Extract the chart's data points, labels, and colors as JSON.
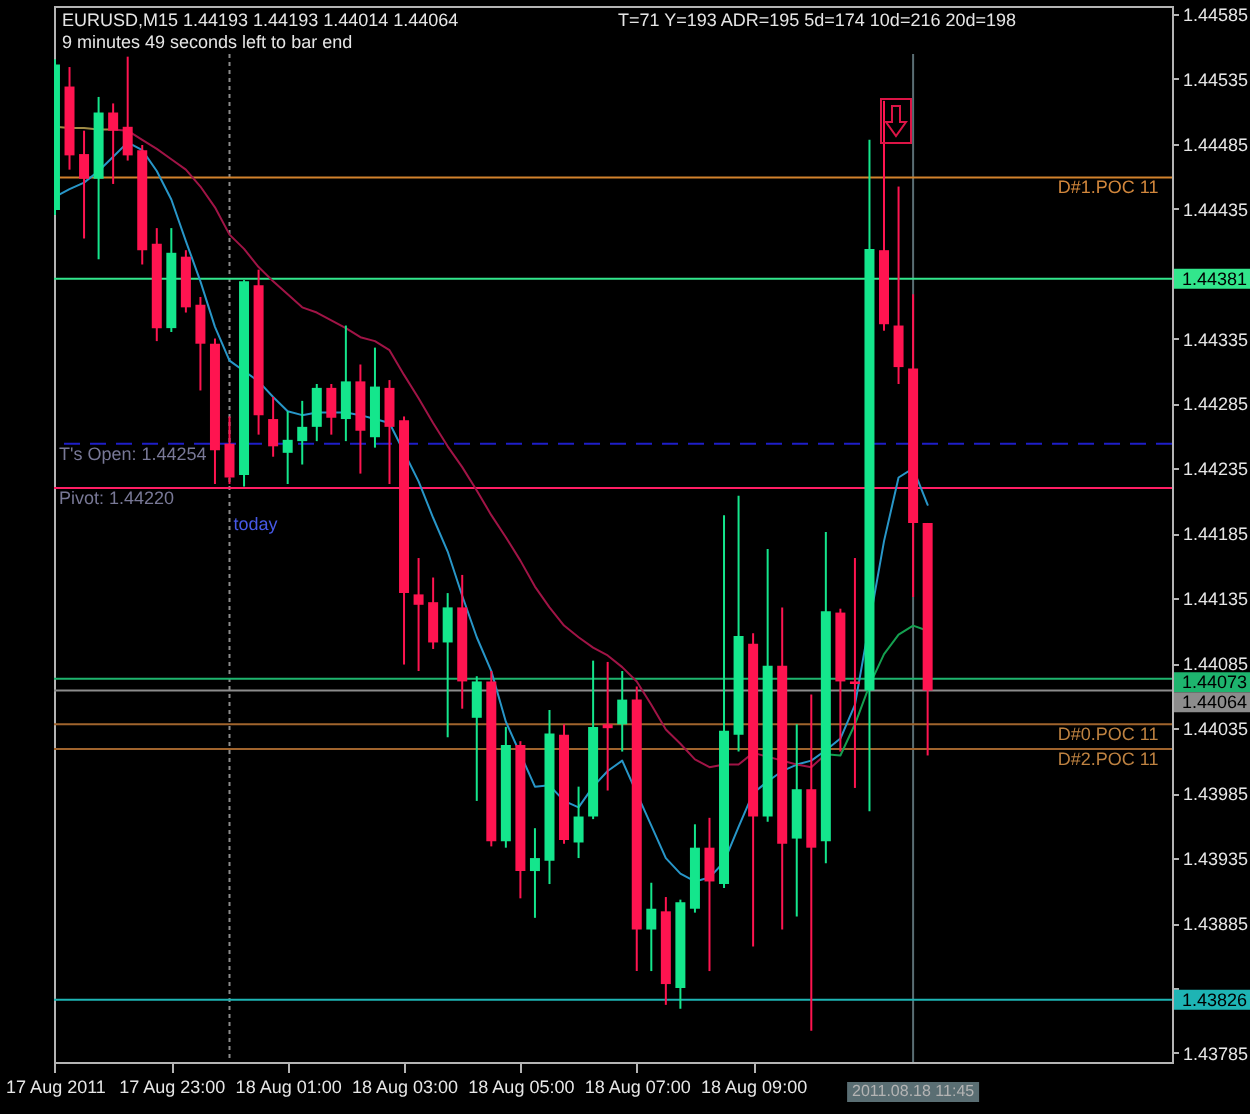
{
  "chart_data": {
    "type": "candlestick",
    "title": "EURUSD,M15  1.44193 1.44193 1.44014 1.44064",
    "subtitle": "9 minutes 49 seconds left to bar end",
    "annotations": [
      "T=71   Y=193  ADR=195  5d=174  10d=216  20d=198",
      {
        "text": "T's Open: 1.44254",
        "x": "2011-08-17T21:00",
        "y": 1.44254
      },
      {
        "text": "Pivot: 1.44220",
        "x": "2011-08-17T21:00",
        "y": 1.4422
      },
      {
        "text": "today",
        "x": "2011-08-18T00:00",
        "y": 1.442
      },
      {
        "text": "D#1.POC 11",
        "x": "2011-08-18T14:10",
        "y": 1.44459
      },
      {
        "text": "D#0.POC 11",
        "x": "2011-08-18T14:10",
        "y": 1.44038
      },
      {
        "text": "D#2.POC 11",
        "x": "2011-08-18T14:10",
        "y": 1.44019
      }
    ],
    "x": [
      "2011-08-17T21:00",
      "2011-08-17T21:15",
      "2011-08-17T21:30",
      "2011-08-17T21:45",
      "2011-08-17T22:00",
      "2011-08-17T22:15",
      "2011-08-17T22:30",
      "2011-08-17T22:45",
      "2011-08-17T23:00",
      "2011-08-17T23:15",
      "2011-08-17T23:30",
      "2011-08-17T23:45",
      "2011-08-18T00:00",
      "2011-08-18T00:15",
      "2011-08-18T00:30",
      "2011-08-18T00:45",
      "2011-08-18T01:00",
      "2011-08-18T01:15",
      "2011-08-18T01:30",
      "2011-08-18T01:45",
      "2011-08-18T02:00",
      "2011-08-18T02:15",
      "2011-08-18T02:30",
      "2011-08-18T02:45",
      "2011-08-18T03:00",
      "2011-08-18T03:15",
      "2011-08-18T03:30",
      "2011-08-18T03:45",
      "2011-08-18T04:00",
      "2011-08-18T04:15",
      "2011-08-18T04:30",
      "2011-08-18T04:45",
      "2011-08-18T05:00",
      "2011-08-18T05:15",
      "2011-08-18T05:30",
      "2011-08-18T05:45",
      "2011-08-18T06:00",
      "2011-08-18T06:15",
      "2011-08-18T06:30",
      "2011-08-18T06:45",
      "2011-08-18T07:00",
      "2011-08-18T07:15",
      "2011-08-18T07:30",
      "2011-08-18T07:45",
      "2011-08-18T08:00",
      "2011-08-18T08:15",
      "2011-08-18T08:30",
      "2011-08-18T08:45",
      "2011-08-18T09:00",
      "2011-08-18T09:15",
      "2011-08-18T09:30",
      "2011-08-18T09:45",
      "2011-08-18T10:00",
      "2011-08-18T10:15",
      "2011-08-18T10:30",
      "2011-08-18T10:45",
      "2011-08-18T11:00",
      "2011-08-18T11:15",
      "2011-08-18T11:30",
      "2011-08-18T11:45",
      "2011-08-18T12:00"
    ],
    "ohlc": [
      [
        1.44434,
        1.4455,
        1.4443,
        1.44546
      ],
      [
        1.44529,
        1.44544,
        1.44465,
        1.44476
      ],
      [
        1.44477,
        1.44495,
        1.44412,
        1.44458
      ],
      [
        1.44458,
        1.44521,
        1.44396,
        1.44509
      ],
      [
        1.44509,
        1.44516,
        1.44454,
        1.44495
      ],
      [
        1.44498,
        1.44552,
        1.44472,
        1.44476
      ],
      [
        1.4448,
        1.44484,
        1.44392,
        1.44403
      ],
      [
        1.44408,
        1.4442,
        1.44333,
        1.44343
      ],
      [
        1.44343,
        1.4442,
        1.4434,
        1.44401
      ],
      [
        1.44398,
        1.44403,
        1.44355,
        1.44359
      ],
      [
        1.44361,
        1.44367,
        1.44295,
        1.44331
      ],
      [
        1.44331,
        1.44335,
        1.44223,
        1.44249
      ],
      [
        1.44254,
        1.44275,
        1.44223,
        1.44228
      ],
      [
        1.4423,
        1.4438,
        1.44221,
        1.44379
      ],
      [
        1.44376,
        1.44388,
        1.44261,
        1.44276
      ],
      [
        1.44273,
        1.4429,
        1.44244,
        1.44252
      ],
      [
        1.44247,
        1.44279,
        1.44223,
        1.44257
      ],
      [
        1.44256,
        1.44287,
        1.44238,
        1.44267
      ],
      [
        1.44267,
        1.443,
        1.44256,
        1.44297
      ],
      [
        1.44297,
        1.443,
        1.44261,
        1.44274
      ],
      [
        1.44273,
        1.44345,
        1.44256,
        1.44302
      ],
      [
        1.44302,
        1.44315,
        1.44231,
        1.44264
      ],
      [
        1.44259,
        1.44328,
        1.44251,
        1.44298
      ],
      [
        1.44297,
        1.44303,
        1.44223,
        1.44267
      ],
      [
        1.44272,
        1.44275,
        1.44084,
        1.44139
      ],
      [
        1.44138,
        1.44166,
        1.44079,
        1.4413
      ],
      [
        1.44132,
        1.44151,
        1.44096,
        1.44101
      ],
      [
        1.44101,
        1.44139,
        1.44028,
        1.44128
      ],
      [
        1.44128,
        1.44153,
        1.4405,
        1.44071
      ],
      [
        1.44043,
        1.44075,
        1.43979,
        1.44071
      ],
      [
        1.44071,
        1.44079,
        1.43944,
        1.43948
      ],
      [
        1.43948,
        1.44036,
        1.43943,
        1.44022
      ],
      [
        1.44022,
        1.44025,
        1.43904,
        1.43925
      ],
      [
        1.43925,
        1.43958,
        1.43889,
        1.43935
      ],
      [
        1.43933,
        1.44049,
        1.43915,
        1.44031
      ],
      [
        1.4403,
        1.44038,
        1.43946,
        1.43949
      ],
      [
        1.43947,
        1.4399,
        1.43935,
        1.43967
      ],
      [
        1.43967,
        1.44087,
        1.43965,
        1.44036
      ],
      [
        1.44038,
        1.44086,
        1.43987,
        1.44035
      ],
      [
        1.44038,
        1.44079,
        1.44017,
        1.44057
      ],
      [
        1.44057,
        1.44067,
        1.43848,
        1.4388
      ],
      [
        1.4388,
        1.43916,
        1.43848,
        1.43896
      ],
      [
        1.43894,
        1.43905,
        1.43822,
        1.43838
      ],
      [
        1.43835,
        1.43903,
        1.43819,
        1.43901
      ],
      [
        1.43896,
        1.43961,
        1.43893,
        1.43943
      ],
      [
        1.43943,
        1.43966,
        1.43848,
        1.43917
      ],
      [
        1.43915,
        1.44199,
        1.43912,
        1.44033
      ],
      [
        1.4403,
        1.44214,
        1.44017,
        1.44106
      ],
      [
        1.441,
        1.44108,
        1.43867,
        1.43967
      ],
      [
        1.43967,
        1.44173,
        1.43963,
        1.44083
      ],
      [
        1.44083,
        1.44128,
        1.4388,
        1.43946
      ],
      [
        1.4395,
        1.44038,
        1.4389,
        1.43988
      ],
      [
        1.43988,
        1.44061,
        1.43802,
        1.43943
      ],
      [
        1.43948,
        1.44186,
        1.43931,
        1.44125
      ],
      [
        1.44124,
        1.44127,
        1.44017,
        1.44071
      ],
      [
        1.44071,
        1.44166,
        1.43989,
        1.44069
      ],
      [
        1.44064,
        1.44488,
        1.43971,
        1.44404
      ],
      [
        1.44403,
        1.44518,
        1.44341,
        1.44346
      ],
      [
        1.44345,
        1.44452,
        1.443,
        1.44313
      ],
      [
        1.44312,
        1.44369,
        1.44136,
        1.44193
      ],
      [
        1.44193,
        1.44193,
        1.44014,
        1.44064
      ]
    ],
    "colors": [
      "#14e68c",
      "#ff1450",
      "#ff1450",
      "#14e68c",
      "#ff1450",
      "#ff1450",
      "#ff1450",
      "#ff1450",
      "#14e68c",
      "#ff1450",
      "#ff1450",
      "#ff1450",
      "#ff1450",
      "#14e68c",
      "#ff1450",
      "#ff1450",
      "#14e68c",
      "#14e68c",
      "#14e68c",
      "#ff1450",
      "#14e68c",
      "#ff1450",
      "#14e68c",
      "#ff1450",
      "#ff1450",
      "#ff1450",
      "#ff1450",
      "#14e68c",
      "#ff1450",
      "#14e68c",
      "#ff1450",
      "#14e68c",
      "#ff1450",
      "#14e68c",
      "#14e68c",
      "#ff1450",
      "#14e68c",
      "#14e68c",
      "#ff1450",
      "#14e68c",
      "#ff1450",
      "#14e68c",
      "#ff1450",
      "#14e68c",
      "#14e68c",
      "#ff1450",
      "#14e68c",
      "#14e68c",
      "#ff1450",
      "#14e68c",
      "#ff1450",
      "#14e68c",
      "#ff1450",
      "#14e68c",
      "#ff1450",
      "#ff1450",
      "#14e68c",
      "#ff1450",
      "#ff1450",
      "#ff1450",
      "#ff1450"
    ],
    "series": [
      {
        "type": "line",
        "color": "#2896c8",
        "values": [
          1.44444,
          1.4445,
          1.44455,
          1.44464,
          1.44475,
          1.44486,
          1.4448,
          1.44464,
          1.44442,
          1.4441,
          1.44379,
          1.44344,
          1.44318,
          1.4431,
          1.44302,
          1.4429,
          1.44279,
          1.44276,
          1.44278,
          1.44278,
          1.44278,
          1.44276,
          1.44273,
          1.4427,
          null,
          1.44225,
          1.44197,
          1.44171,
          1.44137,
          1.44105,
          1.44079,
          1.4404,
          null,
          1.4399,
          1.43991,
          1.43979,
          1.43974,
          1.4399,
          1.44002,
          1.4401,
          null,
          1.4396,
          1.43935,
          1.43923,
          1.43917,
          1.4392,
          1.43932,
          1.43959,
          1.43985,
          1.43994,
          1.44002,
          1.44007,
          1.4401,
          1.44018,
          1.44027,
          1.44053,
          null,
          1.44179,
          1.44228,
          1.44235,
          1.44207
        ]
      },
      {
        "type": "line",
        "color": "#a01446",
        "values": [
          null,
          null,
          null,
          null,
          1.44496,
          1.44495,
          1.44488,
          1.44481,
          1.44473,
          1.44465,
          1.44452,
          1.44436,
          1.44415,
          1.44404,
          1.4439,
          1.44379,
          1.44369,
          1.44359,
          1.44355,
          1.44349,
          1.44343,
          1.44336,
          1.44333,
          1.44326,
          1.44307,
          1.44289,
          1.4427,
          1.44252,
          1.44236,
          1.44218,
          1.44199,
          1.44182,
          1.44164,
          1.44144,
          1.44128,
          1.44114,
          1.44105,
          1.44097,
          1.44091,
          1.44082,
          1.44071,
          1.44053,
          1.44034,
          1.44023,
          1.44011,
          1.44005,
          1.44007,
          1.44007,
          1.44016,
          1.44013,
          1.4401,
          1.44007,
          1.44005,
          1.44015,
          null,
          null,
          null,
          null,
          null,
          null,
          null
        ]
      },
      {
        "type": "line",
        "color": "#14a050",
        "values": [
          null,
          null,
          null,
          null,
          null,
          null,
          null,
          null,
          null,
          null,
          null,
          null,
          null,
          null,
          null,
          null,
          null,
          null,
          null,
          null,
          null,
          null,
          null,
          null,
          null,
          null,
          null,
          null,
          null,
          null,
          null,
          null,
          null,
          null,
          null,
          null,
          null,
          null,
          null,
          null,
          null,
          null,
          null,
          null,
          null,
          null,
          null,
          null,
          null,
          null,
          null,
          null,
          null,
          1.44015,
          1.44014,
          1.44038,
          1.44068,
          1.44092,
          1.44107,
          1.44114,
          1.4411
        ]
      },
      {
        "type": "line",
        "color": "#a08c46",
        "values": [
          1.44498,
          1.44497,
          1.44497,
          1.44496,
          1.44496,
          null,
          null,
          null,
          null,
          null,
          null,
          null,
          null,
          null,
          null,
          null,
          null,
          null,
          null,
          null,
          null,
          null,
          null,
          null,
          null,
          null,
          null,
          null,
          null,
          null,
          null,
          null,
          null,
          null,
          null,
          null,
          null,
          null,
          null,
          null,
          null,
          null,
          null,
          null,
          null,
          null,
          null,
          null,
          null,
          null,
          null,
          null,
          null,
          null,
          null,
          null,
          null,
          null,
          null,
          null,
          null
        ]
      }
    ],
    "xlim": [
      "2011-08-17T20:59",
      "2011-08-18T16:12"
    ],
    "xticks": [
      {
        "value": "2011-08-17T21:00",
        "label": "17 Aug 2011"
      },
      {
        "value": "2011-08-17T23:00",
        "label": "17 Aug 23:00"
      },
      {
        "value": "2011-08-18T01:00",
        "label": "18 Aug 01:00"
      },
      {
        "value": "2011-08-18T03:00",
        "label": "18 Aug 03:00"
      },
      {
        "value": "2011-08-18T05:00",
        "label": "18 Aug 05:00"
      },
      {
        "value": "2011-08-18T07:00",
        "label": "18 Aug 07:00"
      },
      {
        "value": "2011-08-18T09:00",
        "label": "18 Aug 09:00"
      }
    ],
    "ylim": [
      1.43778,
      1.44591
    ],
    "yticks": [
      1.44585,
      1.44535,
      1.44485,
      1.44435,
      {
        "value": 1.44385,
        "label": null
      },
      1.44335,
      1.44285,
      1.44235,
      1.44185,
      1.44135,
      1.44085,
      1.44035,
      1.43985,
      1.43935,
      1.43885,
      {
        "value": 1.43835,
        "label": null
      },
      1.43785
    ],
    "ref_lines": [
      {
        "axis": "x",
        "value": "2011-08-18T00:00",
        "color": "#8c8c8c",
        "line_style": "dotted"
      },
      {
        "axis": "x",
        "value": "2011-08-18T11:45",
        "label": "2011.08.18 11:45",
        "color": "#5a6e73"
      },
      {
        "axis": "y",
        "value": 1.44459,
        "color": "#d2822d"
      },
      {
        "axis": "y",
        "value": 1.44381,
        "label": "1.44381",
        "color": "#32e68c"
      },
      {
        "axis": "y",
        "value": 1.44254,
        "color": "#1e1ec8",
        "line_style": "dashed"
      },
      {
        "axis": "y",
        "value": 1.4422,
        "color": "#ff1e64"
      },
      {
        "axis": "y",
        "value": 1.44073,
        "label": "1.44073",
        "color": "#1eb46e"
      },
      {
        "axis": "y",
        "value": 1.44064,
        "label": "1.44064",
        "color": "#8c8c8c"
      },
      {
        "axis": "y",
        "value": 1.44038,
        "color": "#a0642d"
      },
      {
        "axis": "y",
        "value": 1.44019,
        "color": "#a0642d"
      },
      {
        "axis": "y",
        "value": 1.43826,
        "label": "1.43826",
        "color": "#1eb4b4"
      }
    ]
  }
}
